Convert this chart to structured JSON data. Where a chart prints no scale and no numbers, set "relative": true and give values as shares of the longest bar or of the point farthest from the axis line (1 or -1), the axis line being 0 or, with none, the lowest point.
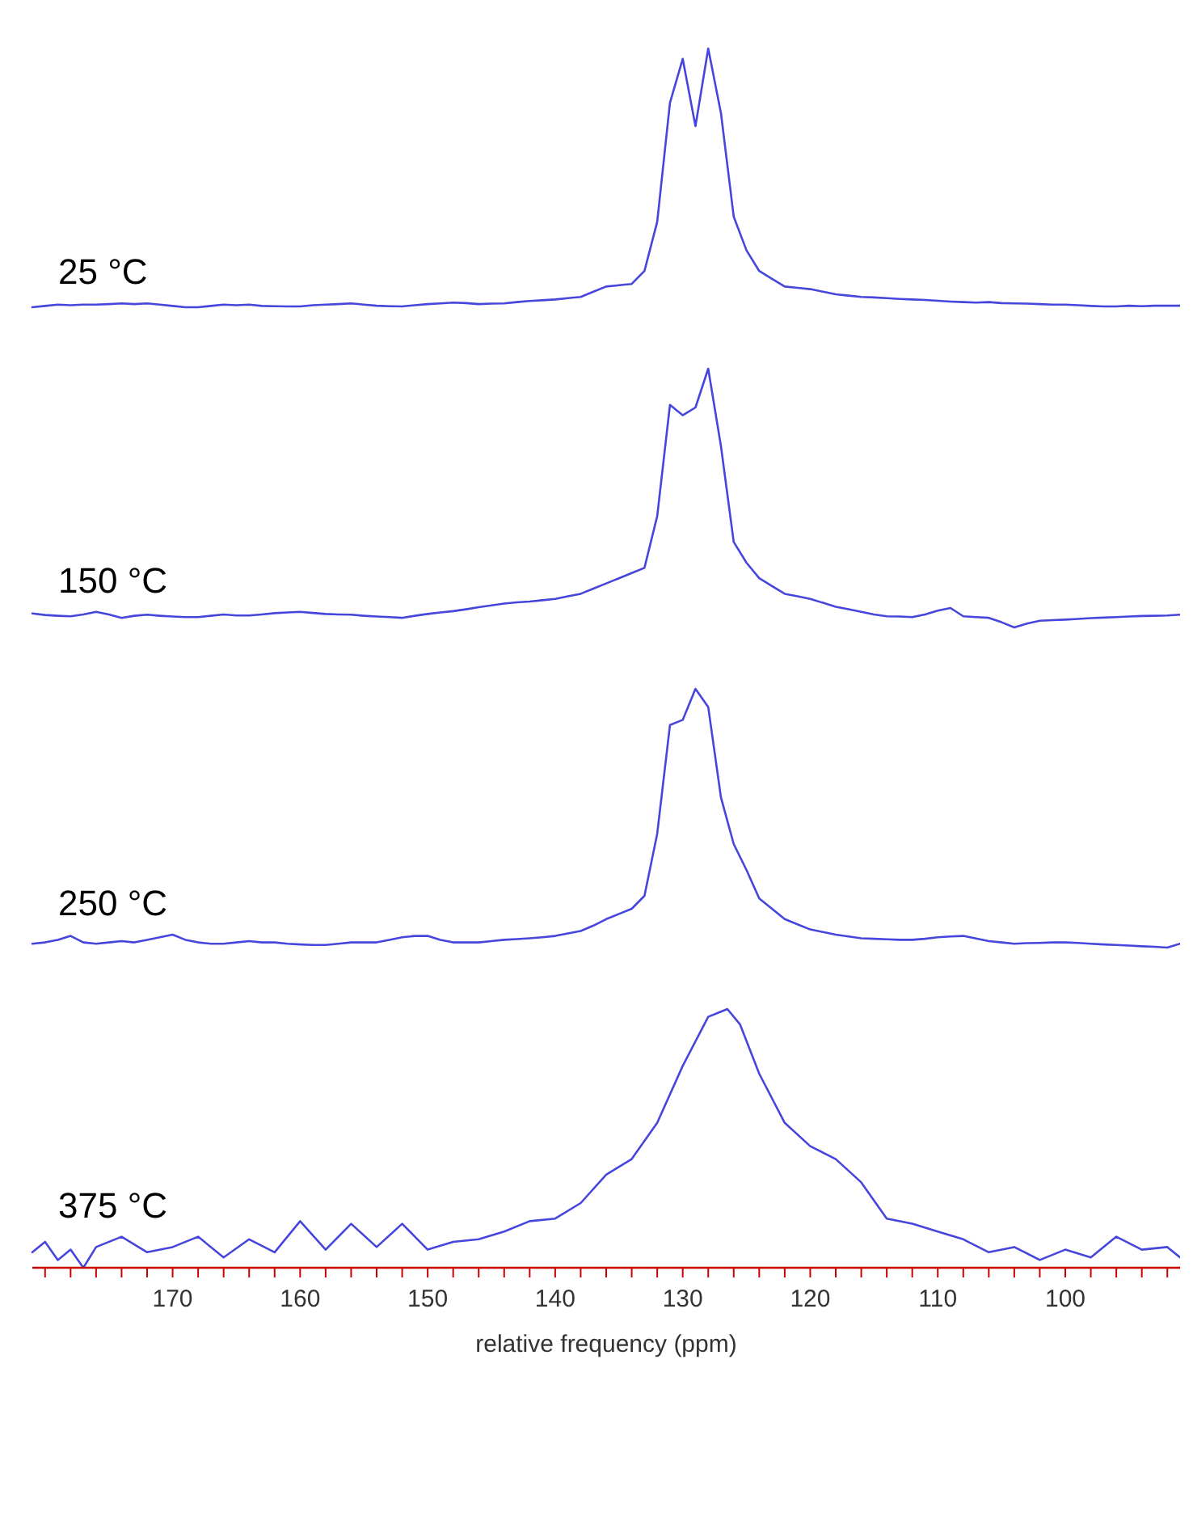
{
  "chart_data": [
    {
      "type": "line",
      "relative": true,
      "tick_labels": false,
      "annotations": [
        "25 °C"
      ],
      "categories": [
        null,
        null,
        null,
        null,
        null,
        null,
        null,
        null,
        null,
        null,
        null,
        null,
        null,
        null,
        null,
        null,
        null,
        null,
        null,
        null,
        null,
        null,
        null,
        null,
        null,
        null,
        null,
        null,
        null,
        null,
        null,
        null,
        null,
        null,
        null,
        null,
        null,
        null,
        null,
        null,
        null,
        null,
        null,
        null,
        null,
        null,
        null,
        null,
        null,
        null,
        null,
        null,
        null,
        null,
        null,
        null,
        null,
        null,
        null,
        null,
        null,
        null,
        null,
        null,
        null,
        null,
        null,
        null,
        null,
        null,
        null,
        null,
        null,
        null,
        null,
        null,
        null,
        null,
        null,
        null,
        null,
        null,
        null,
        null,
        null,
        null,
        null,
        null,
        null,
        null,
        null
      ],
      "series": [
        {
          "color": "#4646dc",
          "values": [
            0,
            0.005,
            0.01,
            0.008,
            0.01,
            0.01,
            0.012,
            0.015,
            0.012,
            0.015,
            0.01,
            0.005,
            0,
            0,
            0.005,
            0.01,
            0.008,
            0.01,
            0.005,
            0.004,
            0.003,
            0.003,
            0.008,
            0.01,
            0.012,
            0.015,
            0.01,
            0.006,
            0.004,
            0.003,
            0.008,
            0.012,
            0.015,
            0.018,
            0.016,
            0.012,
            0.014,
            0.015,
            0.02,
            0.024,
            0.027,
            0.03,
            0.035,
            0.04,
            0.06,
            0.08,
            0.085,
            0.09,
            0.14,
            0.33,
            0.79,
            0.96,
            0.7,
            1,
            0.75,
            0.35,
            0.22,
            0.14,
            0.11,
            0.08,
            0.075,
            0.07,
            0.06,
            0.05,
            0.045,
            0.04,
            0.038,
            0.035,
            0.032,
            0.03,
            0.028,
            0.025,
            0.022,
            0.02,
            0.018,
            0.02,
            0.016,
            0.015,
            0.014,
            0.012,
            0.01,
            0.01,
            0.008,
            0.005,
            0.003,
            0.003,
            0.006,
            0.004,
            0.006,
            0.006,
            0.006
          ]
        }
      ]
    },
    {
      "type": "line",
      "relative": true,
      "tick_labels": false,
      "annotations": [
        "150 °C"
      ],
      "categories": [
        null,
        null,
        null,
        null,
        null,
        null,
        null,
        null,
        null,
        null,
        null,
        null,
        null,
        null,
        null,
        null,
        null,
        null,
        null,
        null,
        null,
        null,
        null,
        null,
        null,
        null,
        null,
        null,
        null,
        null,
        null,
        null,
        null,
        null,
        null,
        null,
        null,
        null,
        null,
        null,
        null,
        null,
        null,
        null,
        null,
        null,
        null,
        null,
        null,
        null,
        null,
        null,
        null,
        null,
        null,
        null,
        null,
        null,
        null,
        null,
        null,
        null,
        null,
        null,
        null,
        null,
        null,
        null,
        null,
        null,
        null,
        null,
        null,
        null,
        null,
        null,
        null,
        null,
        null,
        null,
        null,
        null,
        null,
        null,
        null,
        null,
        null,
        null,
        null,
        null,
        null
      ],
      "series": [
        {
          "color": "#4646dc",
          "values": [
            0.054,
            0.048,
            0.045,
            0.043,
            0.05,
            0.06,
            0.05,
            0.037,
            0.045,
            0.049,
            0.045,
            0.042,
            0.04,
            0.04,
            0.045,
            0.05,
            0.046,
            0.046,
            0.05,
            0.055,
            0.058,
            0.06,
            0.056,
            0.052,
            0.05,
            0.049,
            0.045,
            0.042,
            0.04,
            0.037,
            0.045,
            0.052,
            0.058,
            0.063,
            0.07,
            0.078,
            0.085,
            0.092,
            0.097,
            0.1,
            0.105,
            0.11,
            0.12,
            0.13,
            0.15,
            0.17,
            0.19,
            0.21,
            0.23,
            0.43,
            0.86,
            0.82,
            0.85,
            1,
            0.7,
            0.33,
            0.25,
            0.19,
            0.16,
            0.13,
            0.12,
            0.11,
            0.095,
            0.08,
            0.07,
            0.06,
            0.05,
            0.043,
            0.042,
            0.04,
            0.05,
            0.065,
            0.075,
            0.043,
            0.04,
            0.037,
            0.02,
            0,
            0.015,
            0.026,
            0.028,
            0.03,
            0.033,
            0.036,
            0.038,
            0.04,
            0.042,
            0.044,
            0.045,
            0.046,
            0.049
          ]
        }
      ]
    },
    {
      "type": "line",
      "relative": true,
      "tick_labels": false,
      "annotations": [
        "250 °C"
      ],
      "categories": [
        null,
        null,
        null,
        null,
        null,
        null,
        null,
        null,
        null,
        null,
        null,
        null,
        null,
        null,
        null,
        null,
        null,
        null,
        null,
        null,
        null,
        null,
        null,
        null,
        null,
        null,
        null,
        null,
        null,
        null,
        null,
        null,
        null,
        null,
        null,
        null,
        null,
        null,
        null,
        null,
        null,
        null,
        null,
        null,
        null,
        null,
        null,
        null,
        null,
        null,
        null,
        null,
        null,
        null,
        null,
        null,
        null,
        null,
        null,
        null,
        null,
        null,
        null,
        null,
        null,
        null,
        null,
        null,
        null,
        null,
        null,
        null,
        null,
        null,
        null,
        null,
        null,
        null,
        null,
        null,
        null,
        null,
        null,
        null,
        null,
        null,
        null,
        null,
        null,
        null,
        null
      ],
      "series": [
        {
          "color": "#4646dc",
          "values": [
            0.015,
            0.02,
            0.03,
            0.045,
            0.02,
            0.015,
            0.02,
            0.025,
            0.02,
            0.03,
            0.04,
            0.05,
            0.03,
            0.02,
            0.015,
            0.015,
            0.02,
            0.025,
            0.02,
            0.02,
            0.015,
            0.012,
            0.01,
            0.01,
            0.015,
            0.02,
            0.02,
            0.02,
            0.03,
            0.04,
            0.045,
            0.045,
            0.03,
            0.02,
            0.02,
            0.02,
            0.025,
            0.03,
            0.033,
            0.036,
            0.04,
            0.045,
            0.055,
            0.064,
            0.085,
            0.11,
            0.13,
            0.15,
            0.2,
            0.44,
            0.86,
            0.88,
            1,
            0.93,
            0.58,
            0.4,
            0.3,
            0.19,
            0.15,
            0.11,
            0.09,
            0.07,
            0.06,
            0.05,
            0.043,
            0.036,
            0.034,
            0.032,
            0.03,
            0.03,
            0.034,
            0.04,
            0.043,
            0.045,
            0.035,
            0.025,
            0.02,
            0.015,
            0.017,
            0.018,
            0.02,
            0.02,
            0.018,
            0.015,
            0.012,
            0.01,
            0.008,
            0.005,
            0.003,
            0,
            0.015
          ]
        }
      ]
    },
    {
      "type": "line",
      "relative": true,
      "tick_labels": "x",
      "xlim": [
        181,
        91
      ],
      "xlabel": "relative frequency (ppm)",
      "annotations": [
        "375 °C"
      ],
      "xticks": [
        {
          "value": 180,
          "label": null
        },
        {
          "value": 178,
          "label": null
        },
        {
          "value": 176,
          "label": null
        },
        {
          "value": 174,
          "label": null
        },
        {
          "value": 172,
          "label": null
        },
        170,
        {
          "value": 168,
          "label": null
        },
        {
          "value": 166,
          "label": null
        },
        {
          "value": 164,
          "label": null
        },
        {
          "value": 162,
          "label": null
        },
        160,
        {
          "value": 158,
          "label": null
        },
        {
          "value": 156,
          "label": null
        },
        {
          "value": 154,
          "label": null
        },
        {
          "value": 152,
          "label": null
        },
        150,
        {
          "value": 148,
          "label": null
        },
        {
          "value": 146,
          "label": null
        },
        {
          "value": 144,
          "label": null
        },
        {
          "value": 142,
          "label": null
        },
        140,
        {
          "value": 138,
          "label": null
        },
        {
          "value": 136,
          "label": null
        },
        {
          "value": 134,
          "label": null
        },
        {
          "value": 132,
          "label": null
        },
        130,
        {
          "value": 128,
          "label": null
        },
        {
          "value": 126,
          "label": null
        },
        {
          "value": 124,
          "label": null
        },
        {
          "value": 122,
          "label": null
        },
        120,
        {
          "value": 118,
          "label": null
        },
        {
          "value": 116,
          "label": null
        },
        {
          "value": 114,
          "label": null
        },
        {
          "value": 112,
          "label": null
        },
        110,
        {
          "value": 108,
          "label": null
        },
        {
          "value": 106,
          "label": null
        },
        {
          "value": 104,
          "label": null
        },
        {
          "value": 102,
          "label": null
        },
        100,
        {
          "value": 98,
          "label": null
        },
        {
          "value": 96,
          "label": null
        },
        {
          "value": 94,
          "label": null
        },
        {
          "value": 92,
          "label": null
        }
      ],
      "x": [
        181,
        180,
        179,
        178,
        177,
        176,
        174,
        172,
        170,
        168,
        166,
        164,
        162,
        160,
        158,
        156,
        154,
        152,
        150,
        148,
        146,
        144,
        142,
        140,
        138,
        136,
        134,
        132,
        130,
        128,
        127,
        126.5,
        125.5,
        124,
        122,
        120,
        118,
        116,
        114,
        112,
        110,
        108,
        106,
        104,
        102,
        100,
        98,
        96,
        94,
        92,
        91
      ],
      "series": [
        {
          "color": "#4646dc",
          "values": [
            0.06,
            0.1,
            0.03,
            0.07,
            0,
            0.08,
            0.12,
            0.06,
            0.08,
            0.12,
            0.04,
            0.11,
            0.06,
            0.18,
            0.07,
            0.17,
            0.08,
            0.17,
            0.07,
            0.1,
            0.11,
            0.14,
            0.18,
            0.19,
            0.25,
            0.36,
            0.42,
            0.56,
            0.78,
            0.97,
            0.99,
            1,
            0.94,
            0.75,
            0.56,
            0.47,
            0.42,
            0.33,
            0.19,
            0.17,
            0.14,
            0.11,
            0.06,
            0.08,
            0.03,
            0.07,
            0.04,
            0.12,
            0.07,
            0.08,
            0.04
          ]
        }
      ]
    }
  ]
}
